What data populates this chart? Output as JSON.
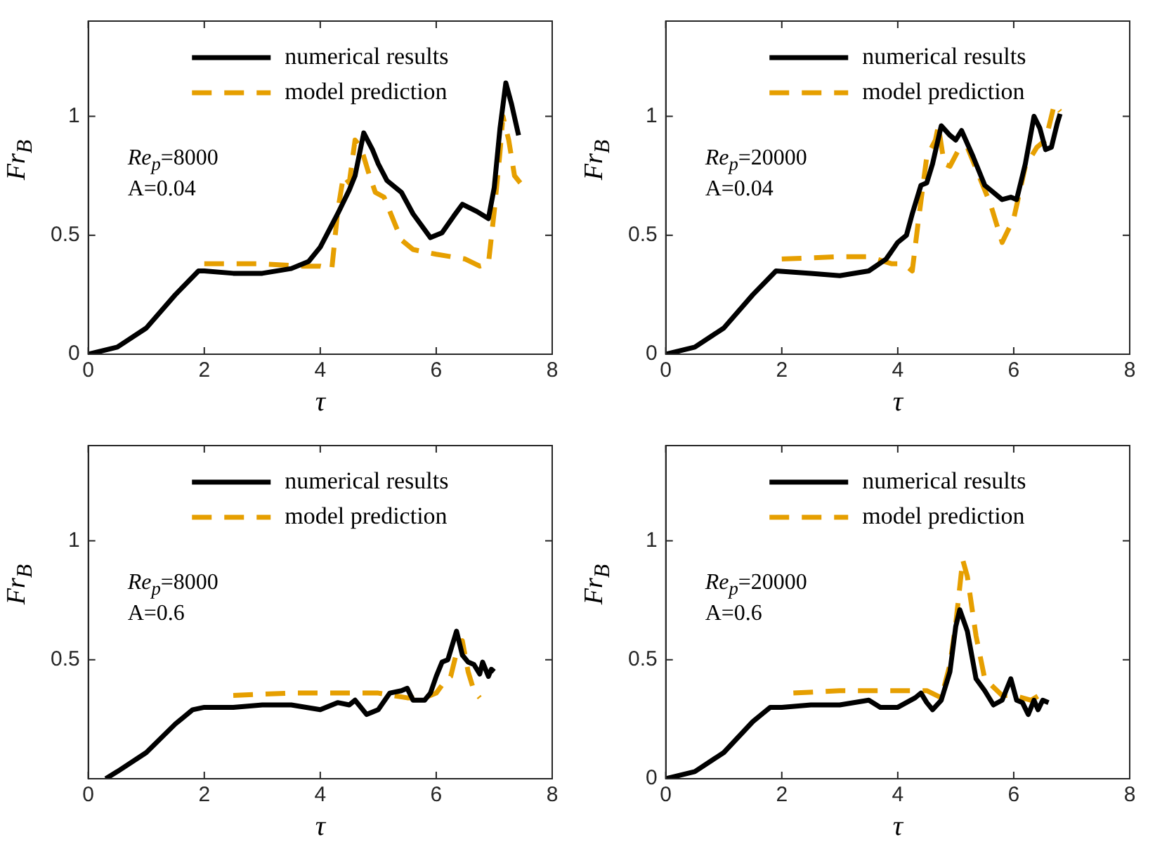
{
  "chart_data": [
    {
      "type": "line",
      "xlabel": "τ",
      "ylabel": "Fr$_{B}$",
      "xlim": [
        0,
        8
      ],
      "xticks": [
        0,
        2,
        4,
        6,
        8
      ],
      "ylim": [
        0,
        1.4
      ],
      "yticks": [
        0,
        0.5,
        1
      ],
      "grid": false,
      "legend": "top",
      "annotations": [
        "Re$_{p}$=8000",
        "A=0.04"
      ],
      "series": [
        {
          "name": "numerical results",
          "color": "#000000",
          "line_style": "solid",
          "x": [
            0,
            0.5,
            1,
            1.5,
            1.9,
            2,
            2.5,
            3,
            3.5,
            3.8,
            4,
            4.3,
            4.5,
            4.6,
            4.75,
            4.9,
            5,
            5.15,
            5.4,
            5.6,
            5.9,
            6.1,
            6.3,
            6.45,
            6.7,
            6.9,
            7,
            7.1,
            7.2,
            7.3,
            7.42
          ],
          "values": [
            0,
            0.03,
            0.11,
            0.25,
            0.35,
            0.35,
            0.34,
            0.34,
            0.36,
            0.39,
            0.45,
            0.59,
            0.69,
            0.75,
            0.93,
            0.86,
            0.8,
            0.73,
            0.68,
            0.59,
            0.49,
            0.51,
            0.58,
            0.63,
            0.6,
            0.57,
            0.7,
            0.95,
            1.14,
            1.05,
            0.92
          ]
        },
        {
          "name": "model prediction",
          "color": "#e69f00",
          "line_style": "dashed",
          "x": [
            2,
            3,
            3.7,
            4,
            4.2,
            4.3,
            4.4,
            4.5,
            4.6,
            4.7,
            4.85,
            4.95,
            5.1,
            5.2,
            5.4,
            5.6,
            6,
            6.5,
            6.75,
            6.9,
            7,
            7.1,
            7.15,
            7.25,
            7.35,
            7.45
          ],
          "values": [
            0.38,
            0.38,
            0.37,
            0.37,
            0.36,
            0.6,
            0.75,
            0.72,
            0.9,
            0.87,
            0.75,
            0.68,
            0.66,
            0.6,
            0.48,
            0.44,
            0.42,
            0.4,
            0.37,
            0.38,
            0.6,
            0.85,
            1,
            0.9,
            0.75,
            0.72
          ]
        }
      ]
    },
    {
      "type": "line",
      "xlabel": "τ",
      "ylabel": "Fr$_{B}$",
      "xlim": [
        0,
        8
      ],
      "xticks": [
        0,
        2,
        4,
        6,
        8
      ],
      "ylim": [
        0,
        1.4
      ],
      "yticks": [
        0,
        0.5,
        1
      ],
      "grid": false,
      "legend": "top",
      "annotations": [
        "Re$_{p}$=20000",
        "A=0.04"
      ],
      "series": [
        {
          "name": "numerical results",
          "color": "#000000",
          "line_style": "solid",
          "x": [
            0,
            0.5,
            1,
            1.5,
            1.9,
            2.5,
            3,
            3.5,
            3.8,
            4,
            4.15,
            4.25,
            4.4,
            4.5,
            4.6,
            4.75,
            4.9,
            5,
            5.1,
            5.3,
            5.5,
            5.6,
            5.8,
            5.95,
            6.05,
            6.2,
            6.35,
            6.45,
            6.55,
            6.65,
            6.75,
            6.8
          ],
          "values": [
            0,
            0.03,
            0.11,
            0.25,
            0.35,
            0.34,
            0.33,
            0.35,
            0.4,
            0.47,
            0.5,
            0.59,
            0.71,
            0.72,
            0.8,
            0.96,
            0.92,
            0.9,
            0.94,
            0.83,
            0.71,
            0.69,
            0.65,
            0.66,
            0.65,
            0.8,
            1,
            0.95,
            0.86,
            0.87,
            0.97,
            1.01
          ]
        },
        {
          "name": "model prediction",
          "color": "#e69f00",
          "line_style": "dashed",
          "x": [
            2,
            3,
            3.5,
            3.9,
            4,
            4.15,
            4.25,
            4.35,
            4.5,
            4.65,
            4.7,
            4.8,
            4.9,
            5.05,
            5.2,
            5.4,
            5.6,
            5.8,
            6,
            6.2,
            6.4,
            6.55,
            6.7,
            6.8
          ],
          "values": [
            0.4,
            0.41,
            0.41,
            0.38,
            0.38,
            0.37,
            0.35,
            0.55,
            0.83,
            0.9,
            0.96,
            0.8,
            0.79,
            0.86,
            0.87,
            0.75,
            0.63,
            0.47,
            0.57,
            0.79,
            0.87,
            0.9,
            1.05,
            1.02
          ]
        }
      ]
    },
    {
      "type": "line",
      "xlabel": "τ",
      "ylabel": "Fr$_{B}$",
      "xlim": [
        0,
        8
      ],
      "xticks": [
        0,
        2,
        4,
        6,
        8
      ],
      "ylim": [
        0,
        1.4
      ],
      "yticks": [
        {
          "value": 0,
          "label": null
        },
        0.5,
        1
      ],
      "grid": false,
      "legend": "top",
      "annotations": [
        "Re$_{p}$=8000",
        "A=0.6"
      ],
      "series": [
        {
          "name": "numerical results",
          "color": "#000000",
          "line_style": "solid",
          "x": [
            0.3,
            0.5,
            1,
            1.5,
            1.8,
            2,
            2.5,
            3,
            3.5,
            4,
            4.3,
            4.5,
            4.6,
            4.8,
            5,
            5.2,
            5.4,
            5.5,
            5.6,
            5.8,
            5.9,
            6,
            6.1,
            6.2,
            6.35,
            6.45,
            6.55,
            6.65,
            6.75,
            6.8,
            6.9,
            6.95,
            7
          ],
          "values": [
            0,
            0.03,
            0.11,
            0.23,
            0.29,
            0.3,
            0.3,
            0.31,
            0.31,
            0.29,
            0.32,
            0.31,
            0.33,
            0.27,
            0.29,
            0.36,
            0.37,
            0.38,
            0.33,
            0.33,
            0.36,
            0.43,
            0.49,
            0.5,
            0.62,
            0.52,
            0.49,
            0.48,
            0.44,
            0.49,
            0.43,
            0.46,
            0.45
          ]
        },
        {
          "name": "model prediction",
          "color": "#e69f00",
          "line_style": "dashed",
          "x": [
            2.5,
            3.5,
            4.5,
            5,
            5.5,
            5.8,
            6,
            6.15,
            6.25,
            6.35,
            6.45,
            6.55,
            6.65,
            6.75
          ],
          "values": [
            0.35,
            0.36,
            0.36,
            0.36,
            0.34,
            0.34,
            0.36,
            0.41,
            0.43,
            0.53,
            0.58,
            0.45,
            0.37,
            0.34
          ]
        }
      ]
    },
    {
      "type": "line",
      "xlabel": "τ",
      "ylabel": "Fr$_{B}$",
      "xlim": [
        0,
        8
      ],
      "xticks": [
        0,
        2,
        4,
        6,
        8
      ],
      "ylim": [
        0,
        1.4
      ],
      "yticks": [
        0,
        0.5,
        1
      ],
      "grid": false,
      "legend": "top",
      "annotations": [
        "Re$_{p}$=20000",
        "A=0.6"
      ],
      "series": [
        {
          "name": "numerical results",
          "color": "#000000",
          "line_style": "solid",
          "x": [
            0,
            0.5,
            1,
            1.5,
            1.8,
            2,
            2.5,
            3,
            3.5,
            3.7,
            4,
            4.3,
            4.4,
            4.5,
            4.6,
            4.75,
            4.9,
            5,
            5.07,
            5.2,
            5.35,
            5.5,
            5.65,
            5.8,
            5.95,
            6.05,
            6.15,
            6.25,
            6.35,
            6.42,
            6.5,
            6.6
          ],
          "values": [
            0,
            0.03,
            0.11,
            0.24,
            0.3,
            0.3,
            0.31,
            0.31,
            0.33,
            0.3,
            0.3,
            0.34,
            0.36,
            0.32,
            0.29,
            0.33,
            0.45,
            0.64,
            0.71,
            0.62,
            0.42,
            0.37,
            0.31,
            0.33,
            0.42,
            0.33,
            0.32,
            0.27,
            0.33,
            0.29,
            0.33,
            0.32
          ]
        },
        {
          "name": "model prediction",
          "color": "#e69f00",
          "line_style": "dashed",
          "x": [
            2.2,
            3,
            4,
            4.5,
            4.75,
            4.9,
            5,
            5.12,
            5.2,
            5.35,
            5.5,
            5.8,
            6,
            6.3,
            6.5
          ],
          "values": [
            0.36,
            0.37,
            0.37,
            0.37,
            0.34,
            0.48,
            0.65,
            0.92,
            0.85,
            0.6,
            0.42,
            0.35,
            0.35,
            0.33,
            0.36
          ]
        }
      ]
    }
  ]
}
